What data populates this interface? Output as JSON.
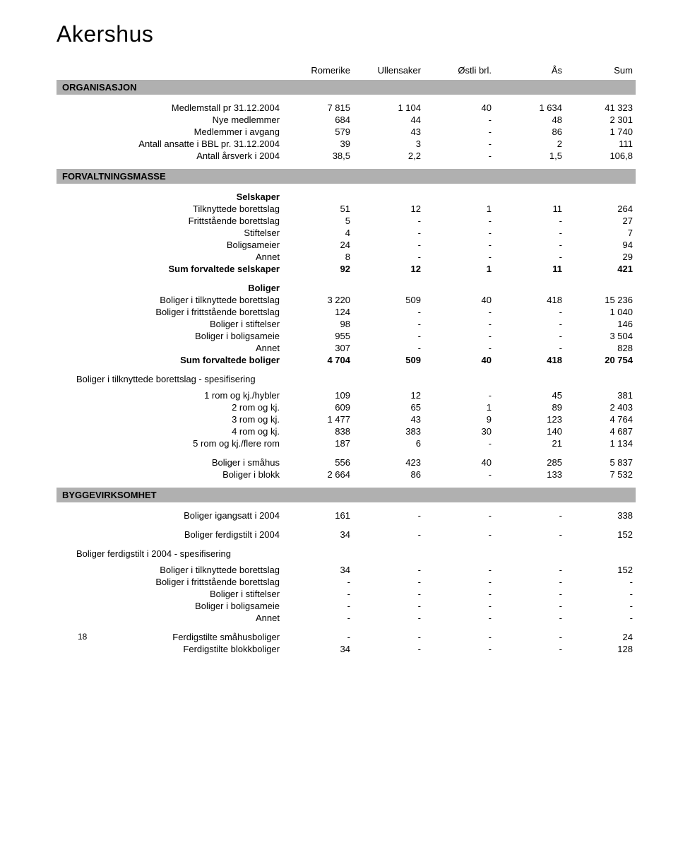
{
  "page_title": "Akershus",
  "page_number": "18",
  "columns": [
    "Romerike",
    "Ullensaker",
    "Østli brl.",
    "Ås",
    "Sum"
  ],
  "sections": {
    "org": {
      "header": "ORGANISASJON",
      "rows": [
        {
          "label": "Medlemstall pr 31.12.2004",
          "c": [
            "7 815",
            "1 104",
            "40",
            "1 634",
            "41 323"
          ]
        },
        {
          "label": "Nye medlemmer",
          "c": [
            "684",
            "44",
            "-",
            "48",
            "2 301"
          ]
        },
        {
          "label": "Medlemmer i avgang",
          "c": [
            "579",
            "43",
            "-",
            "86",
            "1 740"
          ]
        },
        {
          "label": "Antall ansatte i BBL pr. 31.12.2004",
          "c": [
            "39",
            "3",
            "-",
            "2",
            "111"
          ]
        },
        {
          "label": "Antall årsverk i 2004",
          "c": [
            "38,5",
            "2,2",
            "-",
            "1,5",
            "106,8"
          ]
        }
      ]
    },
    "forv": {
      "header": "FORVALTNINGSMASSE",
      "selskaper_title": "Selskaper",
      "selskaper": [
        {
          "label": "Tilknyttede borettslag",
          "c": [
            "51",
            "12",
            "1",
            "11",
            "264"
          ]
        },
        {
          "label": "Frittstående borettslag",
          "c": [
            "5",
            "-",
            "-",
            "-",
            "27"
          ]
        },
        {
          "label": "Stiftelser",
          "c": [
            "4",
            "-",
            "-",
            "-",
            "7"
          ]
        },
        {
          "label": "Boligsameier",
          "c": [
            "24",
            "-",
            "-",
            "-",
            "94"
          ]
        },
        {
          "label": "Annet",
          "c": [
            "8",
            "-",
            "-",
            "-",
            "29"
          ]
        }
      ],
      "selskaper_sum": {
        "label": "Sum forvaltede selskaper",
        "c": [
          "92",
          "12",
          "1",
          "11",
          "421"
        ]
      },
      "boliger_title": "Boliger",
      "boliger": [
        {
          "label": "Boliger i tilknyttede borettslag",
          "c": [
            "3 220",
            "509",
            "40",
            "418",
            "15 236"
          ]
        },
        {
          "label": "Boliger i frittstående borettslag",
          "c": [
            "124",
            "-",
            "-",
            "-",
            "1 040"
          ]
        },
        {
          "label": "Boliger i stiftelser",
          "c": [
            "98",
            "-",
            "-",
            "-",
            "146"
          ]
        },
        {
          "label": "Boliger i boligsameie",
          "c": [
            "955",
            "-",
            "-",
            "-",
            "3 504"
          ]
        },
        {
          "label": "Annet",
          "c": [
            "307",
            "-",
            "-",
            "-",
            "828"
          ]
        }
      ],
      "boliger_sum": {
        "label": "Sum forvaltede boliger",
        "c": [
          "4 704",
          "509",
          "40",
          "418",
          "20 754"
        ]
      },
      "spes_title": "Boliger i tilknyttede borettslag - spesifisering",
      "spes": [
        {
          "label": "1 rom og kj./hybler",
          "c": [
            "109",
            "12",
            "-",
            "45",
            "381"
          ]
        },
        {
          "label": "2 rom og kj.",
          "c": [
            "609",
            "65",
            "1",
            "89",
            "2 403"
          ]
        },
        {
          "label": "3 rom og kj.",
          "c": [
            "1 477",
            "43",
            "9",
            "123",
            "4 764"
          ]
        },
        {
          "label": "4 rom og kj.",
          "c": [
            "838",
            "383",
            "30",
            "140",
            "4 687"
          ]
        },
        {
          "label": "5 rom og kj./flere rom",
          "c": [
            "187",
            "6",
            "-",
            "21",
            "1 134"
          ]
        }
      ],
      "husblokk": [
        {
          "label": "Boliger i småhus",
          "c": [
            "556",
            "423",
            "40",
            "285",
            "5 837"
          ]
        },
        {
          "label": "Boliger i blokk",
          "c": [
            "2 664",
            "86",
            "-",
            "133",
            "7 532"
          ]
        }
      ]
    },
    "bygg": {
      "header": "BYGGEVIRKSOMHET",
      "rows1": [
        {
          "label": "Boliger igangsatt i 2004",
          "c": [
            "161",
            "-",
            "-",
            "-",
            "338"
          ]
        }
      ],
      "rows2": [
        {
          "label": "Boliger ferdigstilt i 2004",
          "c": [
            "34",
            "-",
            "-",
            "-",
            "152"
          ]
        }
      ],
      "spes_title": "Boliger ferdigstilt i 2004 - spesifisering",
      "spes": [
        {
          "label": "Boliger i tilknyttede borettslag",
          "c": [
            "34",
            "-",
            "-",
            "-",
            "152"
          ]
        },
        {
          "label": "Boliger i frittstående borettslag",
          "c": [
            "-",
            "-",
            "-",
            "-",
            "-"
          ]
        },
        {
          "label": "Boliger i stiftelser",
          "c": [
            "-",
            "-",
            "-",
            "-",
            "-"
          ]
        },
        {
          "label": "Boliger i boligsameie",
          "c": [
            "-",
            "-",
            "-",
            "-",
            "-"
          ]
        },
        {
          "label": "Annet",
          "c": [
            "-",
            "-",
            "-",
            "-",
            "-"
          ]
        }
      ],
      "ferdig": [
        {
          "label": "Ferdigstilte småhusboliger",
          "c": [
            "-",
            "-",
            "-",
            "-",
            "24"
          ]
        },
        {
          "label": "Ferdigstilte blokkboliger",
          "c": [
            "34",
            "-",
            "-",
            "-",
            "128"
          ]
        }
      ]
    }
  },
  "styling": {
    "section_bg": "#b0b0b0",
    "text_color": "#000000",
    "background": "#ffffff",
    "title_fontsize": 32,
    "body_fontsize": 13
  }
}
